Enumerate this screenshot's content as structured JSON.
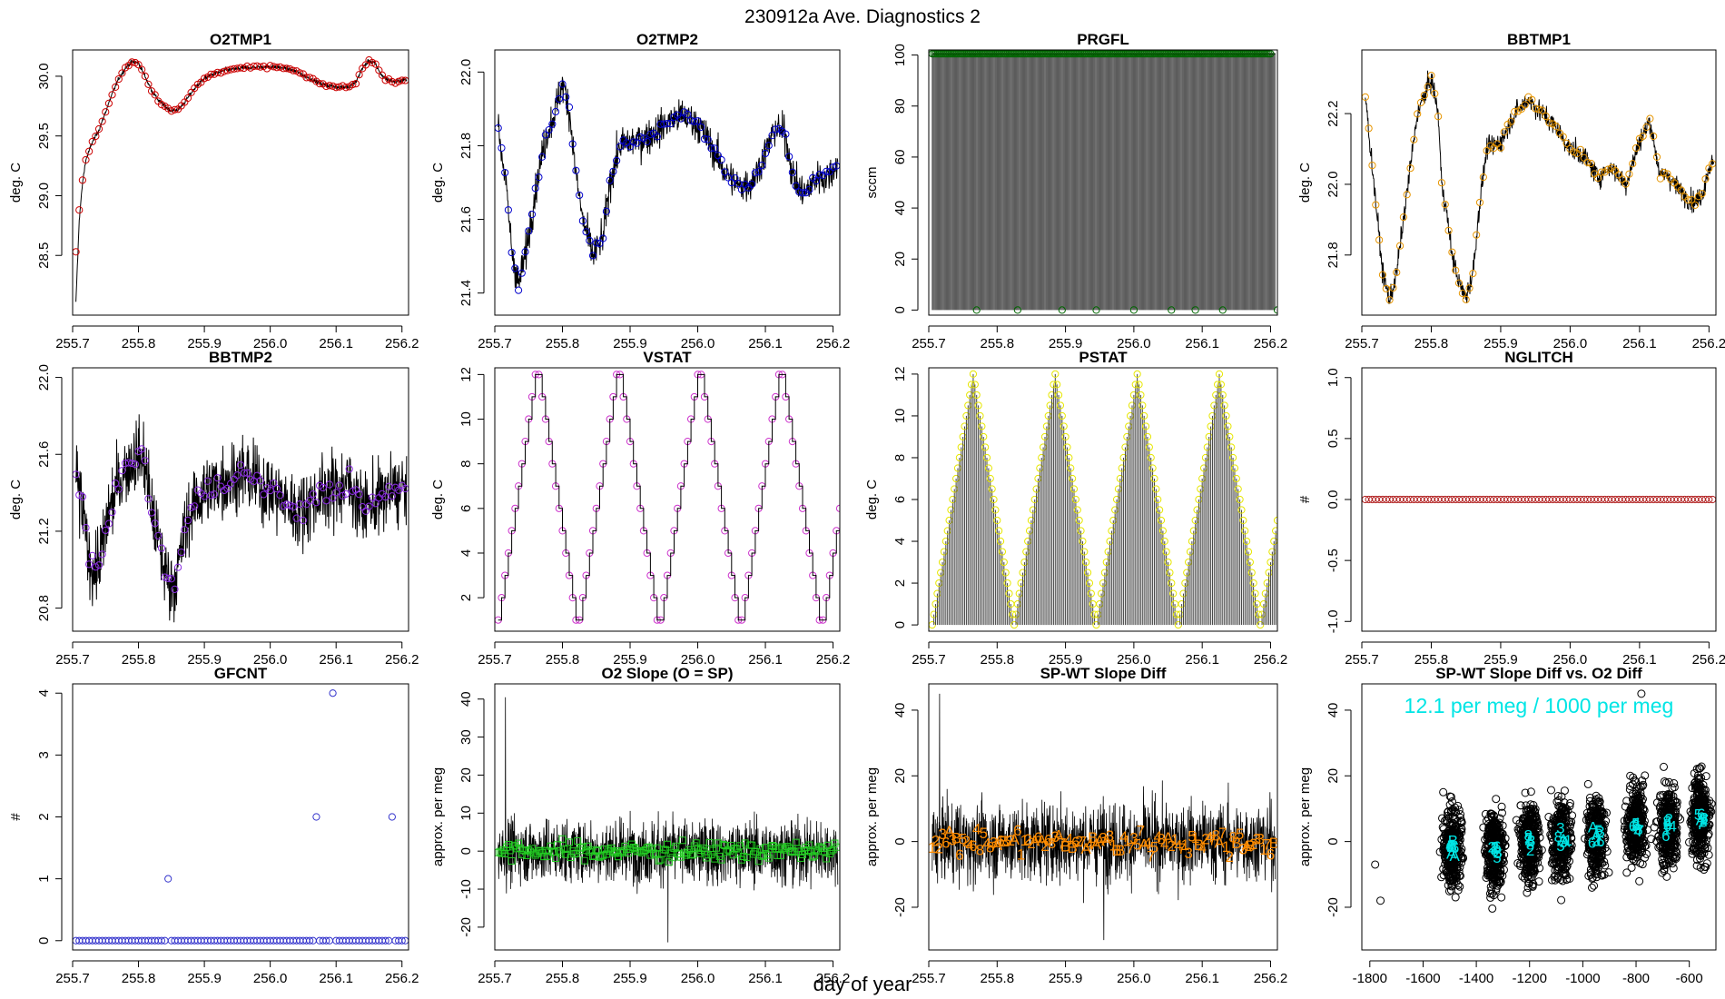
{
  "figure": {
    "title": "230912a   Ave. Diagnostics 2",
    "xlabel": "day of year"
  },
  "chart_data": [
    {
      "id": "o2tmp1",
      "type": "line",
      "title": "O2TMP1",
      "ylabel": "deg. C",
      "xlim": [
        255.7,
        256.21
      ],
      "ylim": [
        28.0,
        30.22
      ],
      "xticks": [
        "255.7",
        "255.8",
        "255.9",
        "256.0",
        "256.1",
        "256.2"
      ],
      "yticks": [
        "28.5",
        "29.0",
        "29.5",
        "30.0"
      ],
      "line_color": "#000000",
      "marker_color": "#cc0000",
      "marker": "circle",
      "line_points": [
        [
          255.705,
          28.1
        ],
        [
          255.71,
          28.8
        ],
        [
          255.715,
          29.1
        ],
        [
          255.72,
          29.3
        ],
        [
          255.73,
          29.45
        ],
        [
          255.74,
          29.55
        ],
        [
          255.75,
          29.7
        ],
        [
          255.76,
          29.85
        ],
        [
          255.77,
          29.98
        ],
        [
          255.78,
          30.07
        ],
        [
          255.79,
          30.12
        ],
        [
          255.8,
          30.11
        ],
        [
          255.81,
          30.0
        ],
        [
          255.82,
          29.88
        ],
        [
          255.83,
          29.8
        ],
        [
          255.84,
          29.75
        ],
        [
          255.85,
          29.71
        ],
        [
          255.86,
          29.72
        ],
        [
          255.87,
          29.78
        ],
        [
          255.88,
          29.86
        ],
        [
          255.89,
          29.93
        ],
        [
          255.9,
          29.98
        ],
        [
          255.91,
          30.01
        ],
        [
          255.93,
          30.05
        ],
        [
          255.96,
          30.07
        ],
        [
          256.0,
          30.08
        ],
        [
          256.02,
          30.07
        ],
        [
          256.04,
          30.04
        ],
        [
          256.06,
          29.98
        ],
        [
          256.08,
          29.93
        ],
        [
          256.1,
          29.91
        ],
        [
          256.12,
          29.91
        ],
        [
          256.13,
          29.95
        ],
        [
          256.14,
          30.07
        ],
        [
          256.15,
          30.13
        ],
        [
          256.16,
          30.1
        ],
        [
          256.17,
          30.0
        ],
        [
          256.18,
          29.97
        ],
        [
          256.19,
          29.95
        ],
        [
          256.2,
          29.97
        ],
        [
          256.21,
          29.97
        ]
      ],
      "noise": 0.015,
      "marker_noise": 0.01,
      "markers": [
        [
          255.705,
          28.53
        ],
        [
          255.71,
          28.88
        ],
        [
          255.715,
          29.13
        ],
        [
          255.72,
          29.3
        ]
      ]
    },
    {
      "id": "o2tmp2",
      "type": "line",
      "title": "O2TMP2",
      "ylabel": "deg. C",
      "xlim": [
        255.7,
        256.21
      ],
      "ylim": [
        21.34,
        22.06
      ],
      "xticks": [
        "255.7",
        "255.8",
        "255.9",
        "256.0",
        "256.1",
        "256.2"
      ],
      "yticks": [
        "21.4",
        "21.6",
        "21.8",
        "22.0"
      ],
      "line_color": "#000000",
      "marker_color": "#0000cc",
      "marker": "circle",
      "line_points": [
        [
          255.705,
          21.85
        ],
        [
          255.715,
          21.72
        ],
        [
          255.725,
          21.52
        ],
        [
          255.735,
          21.42
        ],
        [
          255.745,
          21.5
        ],
        [
          255.76,
          21.68
        ],
        [
          255.775,
          21.82
        ],
        [
          255.79,
          21.9
        ],
        [
          255.8,
          21.97
        ],
        [
          255.81,
          21.9
        ],
        [
          255.82,
          21.72
        ],
        [
          255.83,
          21.6
        ],
        [
          255.845,
          21.5
        ],
        [
          255.86,
          21.55
        ],
        [
          255.87,
          21.7
        ],
        [
          255.885,
          21.8
        ],
        [
          255.9,
          21.81
        ],
        [
          255.92,
          21.82
        ],
        [
          255.94,
          21.84
        ],
        [
          255.96,
          21.87
        ],
        [
          255.98,
          21.88
        ],
        [
          256.0,
          21.86
        ],
        [
          256.02,
          21.8
        ],
        [
          256.04,
          21.73
        ],
        [
          256.06,
          21.69
        ],
        [
          256.08,
          21.7
        ],
        [
          256.1,
          21.78
        ],
        [
          256.115,
          21.85
        ],
        [
          256.13,
          21.83
        ],
        [
          256.14,
          21.72
        ],
        [
          256.15,
          21.68
        ],
        [
          256.16,
          21.67
        ],
        [
          256.17,
          21.7
        ],
        [
          256.18,
          21.72
        ],
        [
          256.19,
          21.71
        ],
        [
          256.2,
          21.74
        ],
        [
          256.21,
          21.75
        ]
      ],
      "noise": 0.04,
      "marker_noise": 0.015,
      "markers": []
    },
    {
      "id": "prgfl",
      "type": "impulse",
      "title": "PRGFL",
      "ylabel": "sccm",
      "xlim": [
        255.7,
        256.21
      ],
      "ylim": [
        -2,
        102
      ],
      "xticks": [
        "255.7",
        "255.8",
        "255.9",
        "256.0",
        "256.1",
        "256.2"
      ],
      "yticks": [
        "0",
        "20",
        "40",
        "60",
        "80",
        "100"
      ],
      "high": 100.5,
      "low": 0,
      "marker_color": "#006600",
      "zero_markers": [
        255.77,
        255.83,
        255.895,
        255.945,
        256.0,
        256.055,
        256.09,
        256.13,
        256.21
      ]
    },
    {
      "id": "bbtmp1",
      "type": "line",
      "title": "BBTMP1",
      "ylabel": "deg. C",
      "xlim": [
        255.7,
        256.21
      ],
      "ylim": [
        21.63,
        22.38
      ],
      "xticks": [
        "255.7",
        "255.8",
        "255.9",
        "256.0",
        "256.1",
        "256.2"
      ],
      "yticks": [
        "21.8",
        "22.0",
        "22.2"
      ],
      "line_color": "#000000",
      "marker_color": "#e69500",
      "marker": "circle",
      "line_points": [
        [
          255.705,
          22.25
        ],
        [
          255.71,
          22.15
        ],
        [
          255.72,
          21.95
        ],
        [
          255.73,
          21.75
        ],
        [
          255.74,
          21.67
        ],
        [
          255.75,
          21.75
        ],
        [
          255.76,
          21.9
        ],
        [
          255.77,
          22.05
        ],
        [
          255.78,
          22.2
        ],
        [
          255.79,
          22.25
        ],
        [
          255.8,
          22.3
        ],
        [
          255.81,
          22.2
        ],
        [
          255.815,
          22.0
        ],
        [
          255.82,
          21.95
        ],
        [
          255.83,
          21.8
        ],
        [
          255.84,
          21.72
        ],
        [
          255.85,
          21.68
        ],
        [
          255.86,
          21.75
        ],
        [
          255.87,
          21.95
        ],
        [
          255.88,
          22.1
        ],
        [
          255.9,
          22.12
        ],
        [
          255.92,
          22.2
        ],
        [
          255.94,
          22.24
        ],
        [
          255.96,
          22.2
        ],
        [
          255.98,
          22.16
        ],
        [
          256.0,
          22.1
        ],
        [
          256.02,
          22.08
        ],
        [
          256.04,
          22.02
        ],
        [
          256.06,
          22.05
        ],
        [
          256.08,
          22.0
        ],
        [
          256.1,
          22.12
        ],
        [
          256.115,
          22.18
        ],
        [
          256.13,
          22.02
        ],
        [
          256.14,
          22.03
        ],
        [
          256.15,
          22.0
        ],
        [
          256.16,
          21.98
        ],
        [
          256.17,
          21.96
        ],
        [
          256.18,
          21.95
        ],
        [
          256.19,
          21.97
        ],
        [
          256.2,
          22.05
        ],
        [
          256.21,
          22.06
        ]
      ],
      "noise": 0.025,
      "marker_noise": 0.01,
      "markers": []
    },
    {
      "id": "bbtmp2",
      "type": "line",
      "title": "BBTMP2",
      "ylabel": "deg. C",
      "xlim": [
        255.7,
        256.21
      ],
      "ylim": [
        20.68,
        22.05
      ],
      "xticks": [
        "255.7",
        "255.8",
        "255.9",
        "256.0",
        "256.1",
        "256.2"
      ],
      "yticks": [
        "20.8",
        "21.2",
        "21.6",
        "22.0"
      ],
      "line_color": "#000000",
      "marker_color": "#8a2be2",
      "marker": "circle",
      "line_points": [
        [
          255.705,
          21.5
        ],
        [
          255.715,
          21.3
        ],
        [
          255.725,
          21.05
        ],
        [
          255.735,
          21.0
        ],
        [
          255.745,
          21.1
        ],
        [
          255.755,
          21.3
        ],
        [
          255.77,
          21.45
        ],
        [
          255.785,
          21.55
        ],
        [
          255.8,
          21.6
        ],
        [
          255.81,
          21.55
        ],
        [
          255.82,
          21.3
        ],
        [
          255.83,
          21.15
        ],
        [
          255.84,
          21.0
        ],
        [
          255.85,
          20.92
        ],
        [
          255.86,
          21.0
        ],
        [
          255.87,
          21.2
        ],
        [
          255.885,
          21.35
        ],
        [
          255.9,
          21.4
        ],
        [
          255.92,
          21.45
        ],
        [
          255.94,
          21.48
        ],
        [
          255.96,
          21.5
        ],
        [
          255.98,
          21.45
        ],
        [
          256.0,
          21.42
        ],
        [
          256.02,
          21.36
        ],
        [
          256.04,
          21.3
        ],
        [
          256.06,
          21.35
        ],
        [
          256.08,
          21.4
        ],
        [
          256.1,
          21.42
        ],
        [
          256.12,
          21.45
        ],
        [
          256.14,
          21.32
        ],
        [
          256.16,
          21.35
        ],
        [
          256.18,
          21.4
        ],
        [
          256.2,
          21.42
        ],
        [
          256.21,
          21.42
        ]
      ],
      "noise": 0.16,
      "marker_noise": 0.05,
      "markers": []
    },
    {
      "id": "vstat",
      "type": "step",
      "title": "VSTAT",
      "ylabel": "deg. C",
      "xlim": [
        255.7,
        256.21
      ],
      "ylim": [
        0.5,
        12.3
      ],
      "xticks": [
        "255.7",
        "255.8",
        "255.9",
        "256.0",
        "256.1",
        "256.2"
      ],
      "yticks": [
        "2",
        "4",
        "6",
        "8",
        "10",
        "12"
      ],
      "line_color": "#000000",
      "marker_color": "#cc33cc",
      "x0": 255.705,
      "dx": 0.005,
      "min": 1,
      "max": 12,
      "n": 102
    },
    {
      "id": "pstat",
      "type": "impulse_tri",
      "title": "PSTAT",
      "ylabel": "deg. C",
      "xlim": [
        255.7,
        256.21
      ],
      "ylim": [
        -0.3,
        12.3
      ],
      "xticks": [
        "255.7",
        "255.8",
        "255.9",
        "256.0",
        "256.1",
        "256.2"
      ],
      "yticks": [
        "0",
        "2",
        "4",
        "6",
        "8",
        "10",
        "12"
      ],
      "marker_color": "#e6e600",
      "x0": 255.705,
      "dx": 0.0025,
      "max": 12,
      "n": 203
    },
    {
      "id": "nglitch",
      "type": "scatter",
      "title": "NGLITCH",
      "ylabel": "#",
      "xlim": [
        255.7,
        256.21
      ],
      "ylim": [
        -1.08,
        1.08
      ],
      "xticks": [
        "255.7",
        "255.8",
        "255.9",
        "256.0",
        "256.1",
        "256.2"
      ],
      "yticks": [
        "-1.0",
        "-0.5",
        "0.0",
        "0.5",
        "1.0"
      ],
      "marker_color": "#b22222",
      "constant_value": 0,
      "x0": 255.705,
      "dx": 0.005,
      "n": 101
    },
    {
      "id": "gfcnt",
      "type": "scatter",
      "title": "GFCNT",
      "ylabel": "#",
      "xlim": [
        255.7,
        256.21
      ],
      "ylim": [
        -0.15,
        4.15
      ],
      "xticks": [
        "255.7",
        "255.8",
        "255.9",
        "256.0",
        "256.1",
        "256.2"
      ],
      "yticks": [
        "0",
        "1",
        "2",
        "3",
        "4"
      ],
      "marker_color": "#3333cc",
      "constant_value": 0,
      "x0": 255.705,
      "dx": 0.005,
      "n": 101,
      "special_points": [
        [
          255.845,
          1
        ],
        [
          256.07,
          2
        ],
        [
          256.095,
          4
        ],
        [
          256.185,
          2
        ]
      ]
    },
    {
      "id": "o2slope",
      "type": "noise_series",
      "title": "O2 Slope (O = SP)",
      "ylabel": "approx. per meg",
      "xlim": [
        255.7,
        256.21
      ],
      "ylim": [
        -26,
        44
      ],
      "xticks": [
        "255.7",
        "255.8",
        "255.9",
        "256.0",
        "256.1",
        "256.2"
      ],
      "yticks": [
        "-20",
        "-10",
        "0",
        "10",
        "20",
        "30",
        "40"
      ],
      "line_color": "#000000",
      "marker_color": "#22cc22",
      "center": 0,
      "spread": 7,
      "spike_max": 40.5,
      "spike_min": -24
    },
    {
      "id": "spwt",
      "type": "noise_series",
      "title": "SP-WT Slope Diff",
      "ylabel": "approx. per meg",
      "xlim": [
        255.7,
        256.21
      ],
      "ylim": [
        -33,
        48
      ],
      "xticks": [
        "255.7",
        "255.8",
        "255.9",
        "256.0",
        "256.1",
        "256.2"
      ],
      "yticks": [
        "-20",
        "0",
        "20",
        "40"
      ],
      "line_color": "#000000",
      "marker_color": "#ff8c00",
      "center": 0,
      "spread": 10,
      "spike_max": 45,
      "spike_min": -30,
      "labels": [
        "2",
        "1",
        "3",
        "4",
        "5",
        "6",
        "7",
        "8",
        "A",
        "B"
      ]
    },
    {
      "id": "spwt_vs_o2",
      "type": "scatter_clusters",
      "title": "SP-WT Slope Diff vs. O2 Diff",
      "ylabel": "approx. per meg",
      "xlim": [
        -1830,
        -500
      ],
      "ylim": [
        -33,
        48
      ],
      "xticks": [
        "-1800",
        "-1600",
        "-1400",
        "-1200",
        "-1000",
        "-800",
        "-600"
      ],
      "xtick_values": [
        -1800,
        -1600,
        -1400,
        -1200,
        -1000,
        -800,
        -600
      ],
      "yticks": [
        "-20",
        "0",
        "20",
        "40"
      ],
      "marker_color": "#000000",
      "label_color": "#00e5e5",
      "annotation": "12.1 per meg / 1000 per meg",
      "clusters": [
        [
          -1490,
          -2
        ],
        [
          -1330,
          -3
        ],
        [
          -1200,
          0
        ],
        [
          -1080,
          1
        ],
        [
          -950,
          2
        ],
        [
          -800,
          5
        ],
        [
          -680,
          5
        ],
        [
          -560,
          8
        ]
      ],
      "outliers": [
        [
          -1780,
          -7
        ],
        [
          -1760,
          -18
        ],
        [
          -780,
          45
        ]
      ],
      "labels": [
        "2",
        "1",
        "3",
        "4",
        "5",
        "6",
        "7",
        "8",
        "A",
        "B"
      ]
    }
  ]
}
